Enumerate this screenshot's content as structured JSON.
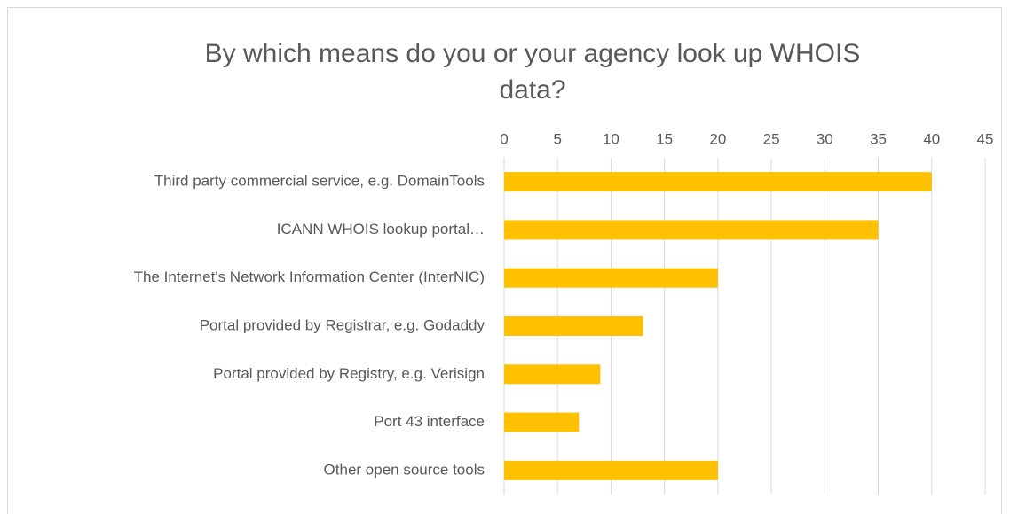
{
  "chart_data": {
    "type": "bar",
    "orientation": "horizontal",
    "title": "By which means do you or your agency look up WHOIS data?",
    "categories": [
      "Third party commercial service, e.g. DomainTools",
      "ICANN WHOIS lookup portal…",
      "The Internet's Network Information Center (InterNIC)",
      "Portal provided by Registrar, e.g. Godaddy",
      "Portal provided by Registry, e.g. Verisign",
      "Port 43 interface",
      "Other open source tools"
    ],
    "values": [
      40,
      35,
      20,
      13,
      9,
      7,
      20
    ],
    "color": "#ffc000",
    "xlim": [
      0,
      45
    ],
    "xticks": [
      0,
      5,
      10,
      15,
      20,
      25,
      30,
      35,
      40,
      45
    ],
    "grid": true
  }
}
